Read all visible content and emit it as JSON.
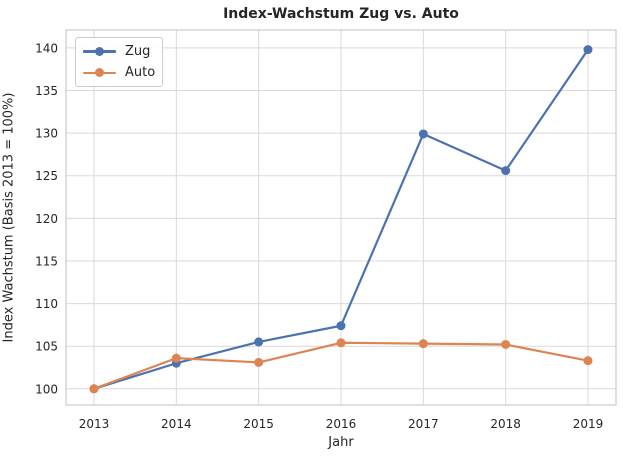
{
  "chart_data": {
    "type": "line",
    "title": "Index-Wachstum Zug vs. Auto",
    "xlabel": "Jahr",
    "ylabel": "Index Wachstum (Basis 2013 = 100%)",
    "categories": [
      "2013",
      "2014",
      "2015",
      "2016",
      "2017",
      "2018",
      "2019"
    ],
    "series": [
      {
        "name": "Zug",
        "color": "#4C72B0",
        "values": [
          100.0,
          103.0,
          105.5,
          107.4,
          129.9,
          125.6,
          139.8
        ]
      },
      {
        "name": "Auto",
        "color": "#DD8452",
        "values": [
          100.0,
          103.6,
          103.1,
          105.4,
          105.3,
          105.2,
          103.3
        ]
      }
    ],
    "ylim": [
      98.1,
      142.1
    ],
    "yticks": [
      100,
      105,
      110,
      115,
      120,
      125,
      130,
      135,
      140
    ],
    "grid": true,
    "legend_position": "upper-left",
    "style": {
      "grid_color": "#d9d9d9",
      "border_color": "#cccccc",
      "text_color": "#262626",
      "background": "#ffffff"
    }
  }
}
